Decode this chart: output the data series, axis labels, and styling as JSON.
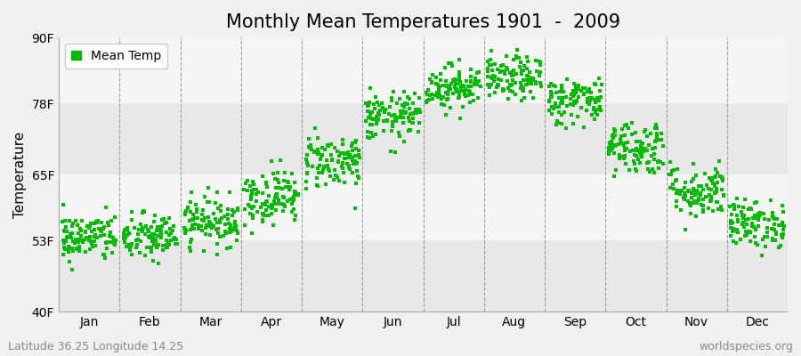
{
  "title": "Monthly Mean Temperatures 1901  -  2009",
  "ylabel": "Temperature",
  "xlabel": "",
  "footer_left": "Latitude 36.25 Longitude 14.25",
  "footer_right": "worldspecies.org",
  "legend_label": "Mean Temp",
  "dot_color": "#00bb00",
  "background_color": "#f0f0f0",
  "band_colors": [
    "#e8e8e8",
    "#f5f5f5"
  ],
  "dashed_line_color": "#888888",
  "ytick_labels": [
    "40F",
    "53F",
    "65F",
    "78F",
    "90F"
  ],
  "ytick_values": [
    40,
    53,
    65,
    78,
    90
  ],
  "ylim": [
    40,
    90
  ],
  "months": [
    "Jan",
    "Feb",
    "Mar",
    "Apr",
    "May",
    "Jun",
    "Jul",
    "Aug",
    "Sep",
    "Oct",
    "Nov",
    "Dec"
  ],
  "mean_temps_F": [
    53.5,
    53.5,
    56.5,
    61.0,
    67.5,
    75.5,
    81.0,
    82.5,
    78.5,
    70.0,
    62.0,
    56.0
  ],
  "temp_std_F": [
    2.2,
    2.2,
    2.2,
    2.5,
    2.5,
    2.2,
    2.0,
    2.0,
    2.2,
    2.5,
    2.5,
    2.2
  ],
  "n_years": 109,
  "random_seed": 42,
  "marker_size": 5,
  "title_fontsize": 15,
  "axis_fontsize": 11,
  "tick_fontsize": 10,
  "footer_fontsize": 9
}
